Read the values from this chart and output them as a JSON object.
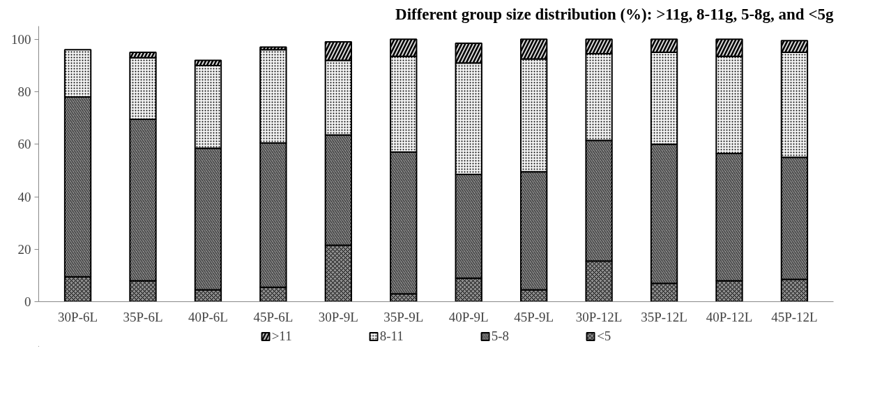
{
  "chart_data": {
    "type": "bar",
    "stacked": true,
    "title": "Different group size distribution (%): >11g, 8-11g, 5-8g, and <5g",
    "categories": [
      "30P-6L",
      "35P-6L",
      "40P-6L",
      "45P-6L",
      "30P-9L",
      "35P-9L",
      "40P-9L",
      "45P-9L",
      "30P-12L",
      "35P-12L",
      "40P-12L",
      "45P-12L"
    ],
    "series": [
      {
        "name": "<5",
        "color": "#8c8c8c",
        "values": [
          9.5,
          8,
          4.5,
          5.5,
          21.5,
          3,
          9,
          4.5,
          15.5,
          7,
          8,
          8.5
        ]
      },
      {
        "name": "5-8",
        "color": "#a6a6a6",
        "values": [
          68.5,
          61.5,
          54,
          55,
          42,
          54,
          39.5,
          45,
          46,
          53,
          48.5,
          46.5
        ]
      },
      {
        "name": "8-11",
        "color": "#f2f2f2",
        "values": [
          18,
          23.5,
          31.5,
          35.5,
          28.5,
          36.5,
          42.5,
          43,
          33,
          35,
          37,
          40
        ]
      },
      {
        "name": ">11",
        "color": "#d9d9d9",
        "values": [
          null,
          2,
          2,
          1,
          7,
          6.5,
          7.5,
          7.5,
          5.5,
          5,
          6.5,
          4.5
        ]
      }
    ],
    "ylim": [
      0,
      105
    ],
    "yticks": [
      0,
      20,
      40,
      60,
      80,
      100
    ],
    "grid": false,
    "legend": "bottom"
  }
}
